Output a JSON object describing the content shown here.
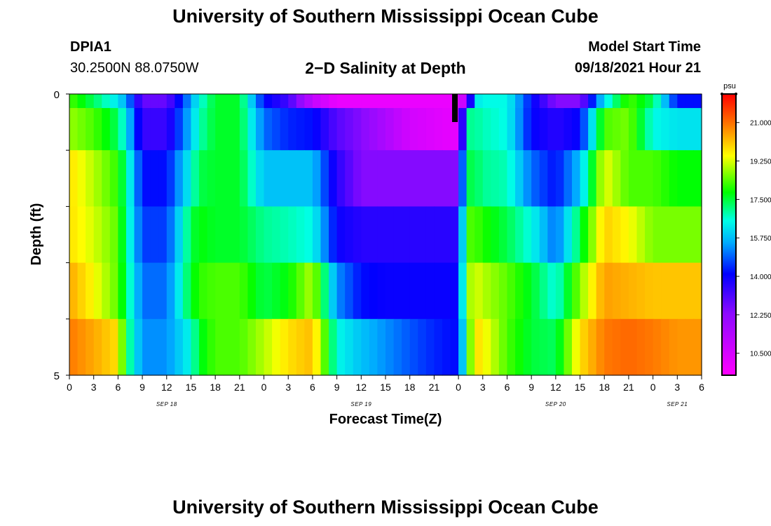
{
  "header": {
    "title": "University of Southern Mississippi Ocean Cube",
    "station_id": "DPIA1",
    "station_coords": "30.2500N  88.0750W",
    "chart_title": "2−D Salinity at Depth",
    "start_label": "Model Start Time",
    "start_value": "09/18/2021 Hour 21"
  },
  "footer": {
    "title": "University of Southern Mississippi Ocean Cube"
  },
  "chart_data": {
    "type": "heatmap",
    "title": "2−D Salinity at Depth",
    "xlabel": "Forecast Time(Z)",
    "ylabel": "Depth (ft)",
    "x_start_hour": 0,
    "x_end_hour": 78,
    "x_tick_step_hours": 3,
    "x_tick_labels": [
      "0",
      "3",
      "6",
      "9",
      "12",
      "15",
      "18",
      "21",
      "0",
      "3",
      "6",
      "9",
      "12",
      "15",
      "18",
      "21",
      "0",
      "3",
      "6",
      "9",
      "12",
      "15",
      "18",
      "21",
      "0",
      "3",
      "6"
    ],
    "day_labels": [
      {
        "label": "SEP 18",
        "hour": 12
      },
      {
        "label": "SEP 19",
        "hour": 36
      },
      {
        "label": "SEP 20",
        "hour": 60
      },
      {
        "label": "SEP 21",
        "hour": 75
      }
    ],
    "ylim": [
      0,
      5
    ],
    "y_tick_labels": [
      "0",
      "5"
    ],
    "depth_bands": [
      0,
      0.5,
      1.5,
      2.5,
      3.5,
      4.5
    ],
    "x_knot_hours": [
      0,
      3,
      6,
      7,
      9,
      12,
      15,
      16,
      18,
      21,
      24,
      27,
      30,
      33,
      36,
      39,
      42,
      45,
      47,
      48,
      49,
      50,
      51,
      54,
      57,
      60,
      63,
      66,
      69,
      72,
      75,
      78
    ],
    "salinity_knots": [
      [
        18.3,
        17.3,
        16.2,
        15.5,
        12.8,
        12.8,
        15.5,
        16.5,
        17.6,
        17.6,
        14.2,
        13.3,
        11.0,
        10.0,
        10.0,
        10.0,
        10.0,
        10.0,
        10.0,
        10.0,
        11.5,
        16.2,
        16.5,
        16.5,
        14.2,
        12.4,
        12.4,
        16.2,
        18.3,
        17.3,
        14.2,
        14.2
      ],
      [
        18.8,
        18.3,
        17.3,
        16.2,
        13.4,
        13.4,
        15.8,
        16.8,
        17.6,
        17.6,
        15.0,
        14.4,
        14.2,
        13.0,
        12.4,
        11.5,
        10.6,
        10.3,
        10.1,
        10.1,
        17.0,
        17.0,
        16.8,
        16.5,
        14.1,
        13.6,
        14.1,
        18.3,
        18.6,
        16.5,
        16.2,
        16.2
      ],
      [
        19.8,
        19.0,
        18.1,
        17.0,
        14.2,
        14.2,
        16.5,
        17.4,
        17.6,
        17.6,
        15.8,
        15.8,
        15.8,
        13.6,
        12.4,
        12.4,
        12.4,
        12.4,
        12.4,
        12.4,
        17.4,
        17.4,
        17.0,
        16.8,
        15.0,
        14.2,
        15.8,
        19.4,
        18.3,
        18.3,
        17.8,
        17.8
      ],
      [
        19.8,
        19.2,
        18.4,
        17.0,
        14.6,
        14.6,
        17.4,
        17.8,
        17.6,
        17.6,
        17.0,
        16.8,
        16.5,
        14.0,
        13.6,
        13.6,
        13.6,
        13.6,
        13.6,
        13.6,
        18.3,
        18.3,
        18.0,
        17.4,
        16.5,
        15.0,
        17.4,
        20.0,
        19.5,
        18.6,
        18.6,
        18.6
      ],
      [
        20.4,
        19.5,
        18.4,
        17.2,
        15.0,
        15.0,
        17.6,
        18.1,
        18.3,
        18.3,
        17.4,
        17.8,
        19.0,
        15.3,
        14.2,
        14.0,
        14.0,
        14.0,
        14.0,
        14.0,
        18.6,
        19.3,
        19.0,
        18.4,
        17.6,
        16.5,
        18.7,
        20.5,
        20.3,
        20.1,
        20.1,
        20.1
      ],
      [
        20.9,
        20.4,
        19.8,
        17.4,
        15.3,
        15.3,
        16.5,
        17.6,
        18.3,
        18.3,
        19.0,
        19.8,
        20.2,
        16.5,
        15.8,
        15.3,
        14.8,
        14.4,
        14.2,
        14.2,
        17.5,
        19.9,
        19.6,
        18.3,
        17.5,
        17.3,
        19.8,
        20.9,
        21.1,
        20.9,
        20.6,
        20.6
      ]
    ],
    "colorbar": {
      "unit": "psu",
      "min": 9.5,
      "max": 22.3,
      "tick_values": [
        21.0,
        19.25,
        17.5,
        15.75,
        14.0,
        12.25,
        10.5
      ],
      "tick_labels": [
        "21.000",
        "19.250",
        "17.500",
        "15.750",
        "14.000",
        "12.250",
        "10.500"
      ]
    }
  }
}
